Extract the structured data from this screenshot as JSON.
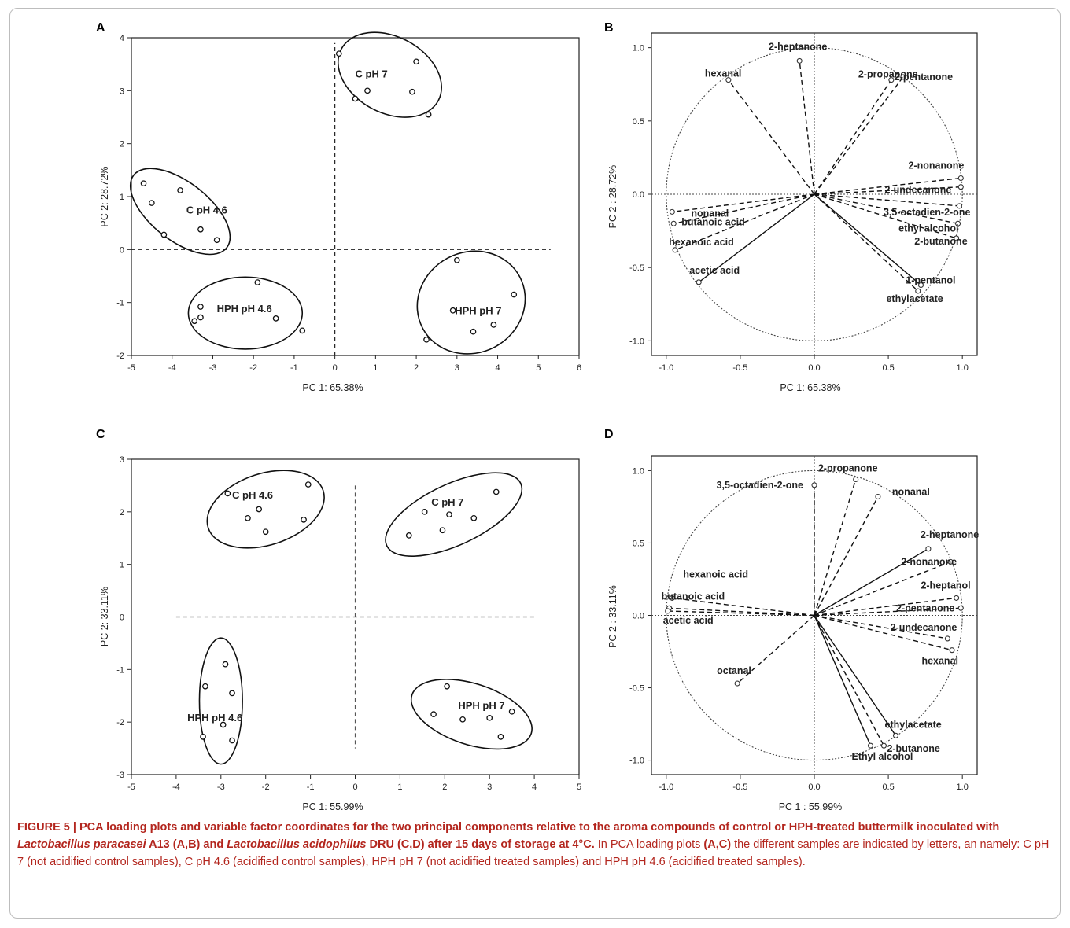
{
  "chart_data": [
    {
      "panel": "A",
      "type": "scatter",
      "xlabel": "PC 1: 65.38%",
      "ylabel": "PC 2: 28.72%",
      "xlim": [
        -5,
        6
      ],
      "ylim": [
        -2,
        4
      ],
      "xticks": [
        -5,
        -4,
        -3,
        -2,
        -1,
        0,
        1,
        2,
        3,
        4,
        5,
        6
      ],
      "yticks": [
        -2,
        -1,
        0,
        1,
        2,
        3,
        4
      ],
      "groups": [
        {
          "name": "C pH 7",
          "points": [
            [
              0.1,
              3.7
            ],
            [
              0.8,
              3.0
            ],
            [
              0.5,
              2.85
            ],
            [
              2.0,
              3.55
            ],
            [
              1.9,
              2.98
            ],
            [
              2.3,
              2.55
            ]
          ]
        },
        {
          "name": "C pH 4.6",
          "points": [
            [
              -4.7,
              1.25
            ],
            [
              -4.5,
              0.88
            ],
            [
              -3.8,
              1.12
            ],
            [
              -4.2,
              0.28
            ],
            [
              -3.3,
              0.38
            ],
            [
              -2.9,
              0.18
            ]
          ]
        },
        {
          "name": "HPH pH 4.6",
          "points": [
            [
              -1.9,
              -0.62
            ],
            [
              -3.3,
              -1.08
            ],
            [
              -3.45,
              -1.35
            ],
            [
              -3.3,
              -1.28
            ],
            [
              -1.45,
              -1.3
            ],
            [
              -0.8,
              -1.53
            ]
          ]
        },
        {
          "name": "HPH pH 7",
          "points": [
            [
              3.0,
              -0.2
            ],
            [
              2.9,
              -1.15
            ],
            [
              4.4,
              -0.85
            ],
            [
              3.9,
              -1.42
            ],
            [
              3.4,
              -1.55
            ],
            [
              2.25,
              -1.7
            ]
          ]
        }
      ]
    },
    {
      "panel": "B",
      "type": "scatter",
      "xlabel": "PC 1: 65.38%",
      "ylabel": "PC 2 : 28.72%",
      "xlim": [
        -1.1,
        1.1
      ],
      "ylim": [
        -1.1,
        1.1
      ],
      "xticks": [
        "-1.0",
        "-0.5",
        "0.0",
        "0.5",
        "1.0"
      ],
      "yticks": [
        "1.0",
        "0.5",
        "0.0",
        "-0.5",
        "-1.0"
      ],
      "vectors": [
        {
          "name": "2-heptanone",
          "x": -0.1,
          "y": 0.91
        },
        {
          "name": "hexanal",
          "x": -0.58,
          "y": 0.78
        },
        {
          "name": "2-propanone",
          "x": 0.52,
          "y": 0.78
        },
        {
          "name": "2-pentanone",
          "x": 0.6,
          "y": 0.8
        },
        {
          "name": "2-nonanone",
          "x": 0.99,
          "y": 0.11
        },
        {
          "name": "2-undecanone",
          "x": 0.99,
          "y": 0.05
        },
        {
          "name": "3,5-octadien-2-one",
          "x": 0.98,
          "y": -0.08
        },
        {
          "name": "ethyl alcohol",
          "x": 0.97,
          "y": -0.2
        },
        {
          "name": "2-butanone",
          "x": 0.96,
          "y": -0.3
        },
        {
          "name": "1-pentanol",
          "x": 0.72,
          "y": -0.62
        },
        {
          "name": "ethylacetate",
          "x": 0.7,
          "y": -0.66
        },
        {
          "name": "nonanal",
          "x": -0.96,
          "y": -0.12
        },
        {
          "name": "butanoic acid",
          "x": -0.95,
          "y": -0.2
        },
        {
          "name": "hexanoic acid",
          "x": -0.94,
          "y": -0.38
        },
        {
          "name": "acetic acid",
          "x": -0.78,
          "y": -0.6
        }
      ]
    },
    {
      "panel": "C",
      "type": "scatter",
      "xlabel": "PC 1: 55.99%",
      "ylabel": "PC 2: 33.11%",
      "xlim": [
        -5,
        5
      ],
      "ylim": [
        -3,
        3
      ],
      "xticks": [
        -5,
        -4,
        -3,
        -2,
        -1,
        0,
        1,
        2,
        3,
        4,
        5
      ],
      "yticks": [
        -3,
        -2,
        -1,
        0,
        1,
        2,
        3
      ],
      "groups": [
        {
          "name": "C pH 4.6",
          "points": [
            [
              -2.85,
              2.35
            ],
            [
              -2.4,
              1.88
            ],
            [
              -2.15,
              2.05
            ],
            [
              -1.05,
              2.52
            ],
            [
              -1.15,
              1.85
            ],
            [
              -2.0,
              1.62
            ]
          ]
        },
        {
          "name": "C pH 7",
          "points": [
            [
              1.55,
              2.0
            ],
            [
              2.1,
              1.95
            ],
            [
              2.65,
              1.88
            ],
            [
              3.15,
              2.38
            ],
            [
              1.95,
              1.65
            ],
            [
              1.2,
              1.55
            ]
          ]
        },
        {
          "name": "HPH pH 4.6",
          "points": [
            [
              -2.9,
              -0.9
            ],
            [
              -3.35,
              -1.32
            ],
            [
              -2.75,
              -1.45
            ],
            [
              -2.95,
              -2.05
            ],
            [
              -3.4,
              -2.28
            ],
            [
              -2.75,
              -2.35
            ]
          ]
        },
        {
          "name": "HPH pH 7",
          "points": [
            [
              2.05,
              -1.32
            ],
            [
              1.75,
              -1.85
            ],
            [
              2.4,
              -1.95
            ],
            [
              3.0,
              -1.92
            ],
            [
              3.5,
              -1.8
            ],
            [
              3.25,
              -2.28
            ]
          ]
        }
      ]
    },
    {
      "panel": "D",
      "type": "scatter",
      "xlabel": "PC 1 : 55.99%",
      "ylabel": "PC 2 : 33.11%",
      "xlim": [
        -1.1,
        1.1
      ],
      "ylim": [
        -1.1,
        1.1
      ],
      "xticks": [
        "-1.0",
        "-0.5",
        "0.0",
        "0.5",
        "1.0"
      ],
      "yticks": [
        "1.0",
        "0.5",
        "0.0",
        "-0.5",
        "-1.0"
      ],
      "vectors": [
        {
          "name": "3,5-octadien-2-one",
          "x": 0.0,
          "y": 0.9
        },
        {
          "name": "2-propanone",
          "x": 0.28,
          "y": 0.94
        },
        {
          "name": "nonanal",
          "x": 0.43,
          "y": 0.82
        },
        {
          "name": "2-heptanone",
          "x": 0.77,
          "y": 0.46
        },
        {
          "name": "2-nonanone",
          "x": 0.92,
          "y": 0.37
        },
        {
          "name": "2-heptanol",
          "x": 0.96,
          "y": 0.12
        },
        {
          "name": "2-pentanone",
          "x": 0.99,
          "y": 0.05
        },
        {
          "name": "2-undecanone",
          "x": 0.9,
          "y": -0.16
        },
        {
          "name": "hexanal",
          "x": 0.93,
          "y": -0.24
        },
        {
          "name": "ethylacetate",
          "x": 0.55,
          "y": -0.83
        },
        {
          "name": "2-butanone",
          "x": 0.47,
          "y": -0.9
        },
        {
          "name": "Ethyl alcohol",
          "x": 0.38,
          "y": -0.9
        },
        {
          "name": "hexanoic acid",
          "x": -0.96,
          "y": 0.12
        },
        {
          "name": "butanoic acid",
          "x": -0.98,
          "y": 0.05
        },
        {
          "name": "acetic acid",
          "x": -0.99,
          "y": 0.03
        },
        {
          "name": "octanal",
          "x": -0.52,
          "y": -0.47
        }
      ]
    }
  ],
  "caption": {
    "lead": "FIGURE 5 | PCA loading plots and variable factor coordinates for the two principal components relative to the aroma compounds of control or HPH-treated buttermilk inoculated with ",
    "species1": "Lactobacillus paracasei",
    "mid1": " A13 ",
    "ref1": "(A,B)",
    "mid2": " and ",
    "species2": "Lactobacillus acidophilus",
    "mid3": " DRU ",
    "ref2": "(C,D)",
    "mid4": " after 15 days of storage at 4°C.",
    "rest1": " In PCA loading plots ",
    "ref3": "(A,C)",
    "rest2": " the different samples are indicated by letters, an namely: C pH 7 (not acidified control samples), C pH 4.6 (acidified control samples), HPH pH 7 (not acidified treated samples) and HPH pH 4.6 (acidified treated samples)."
  }
}
